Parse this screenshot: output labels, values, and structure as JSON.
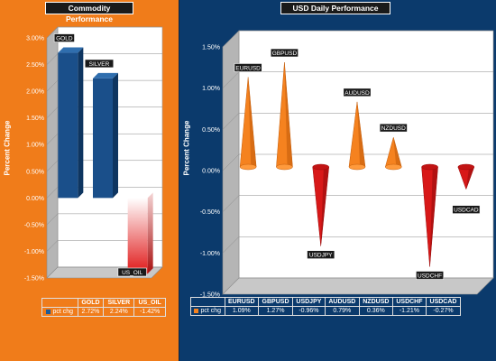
{
  "colors": {
    "left_bg": "#f07c1a",
    "right_bg": "#0b3a6c",
    "positive_commodity": "#1a4f8a",
    "negative": "#e02020",
    "positive_fx": "#f5821f"
  },
  "chart_data": [
    {
      "type": "bar",
      "title": "Commodity Performance",
      "ylabel": "Percent Change",
      "categories": [
        "GOLD",
        "SILVER",
        "US_OIL"
      ],
      "series": [
        {
          "name": "pct chg",
          "values": [
            2.72,
            2.24,
            -1.42
          ]
        }
      ],
      "value_labels": [
        "2.72%",
        "2.24%",
        "-1.42%"
      ],
      "yticks": [
        "3.00%",
        "2.50%",
        "2.00%",
        "1.50%",
        "1.00%",
        "0.50%",
        "0.00%",
        "-0.50%",
        "-1.00%",
        "-1.50%"
      ],
      "ylim": [
        -1.5,
        3.0
      ],
      "grid": true,
      "legend": "table-bottom"
    },
    {
      "type": "bar",
      "title": "USD Daily Performance",
      "ylabel": "Percent Change",
      "categories": [
        "EURUSD",
        "GBPUSD",
        "USDJPY",
        "AUDUSD",
        "NZDUSD",
        "USDCHF",
        "USDCAD"
      ],
      "series": [
        {
          "name": "pct chg",
          "values": [
            1.09,
            1.27,
            -0.96,
            0.79,
            0.36,
            -1.21,
            -0.27
          ]
        }
      ],
      "value_labels": [
        "1.09%",
        "1.27%",
        "-0.96%",
        "0.79%",
        "0.36%",
        "-1.21%",
        "-0.27%"
      ],
      "yticks": [
        "1.50%",
        "1.00%",
        "0.50%",
        "0.00%",
        "-0.50%",
        "-1.00%",
        "-1.50%"
      ],
      "ylim": [
        -1.5,
        1.5
      ],
      "grid": true,
      "legend": "table-bottom"
    }
  ]
}
